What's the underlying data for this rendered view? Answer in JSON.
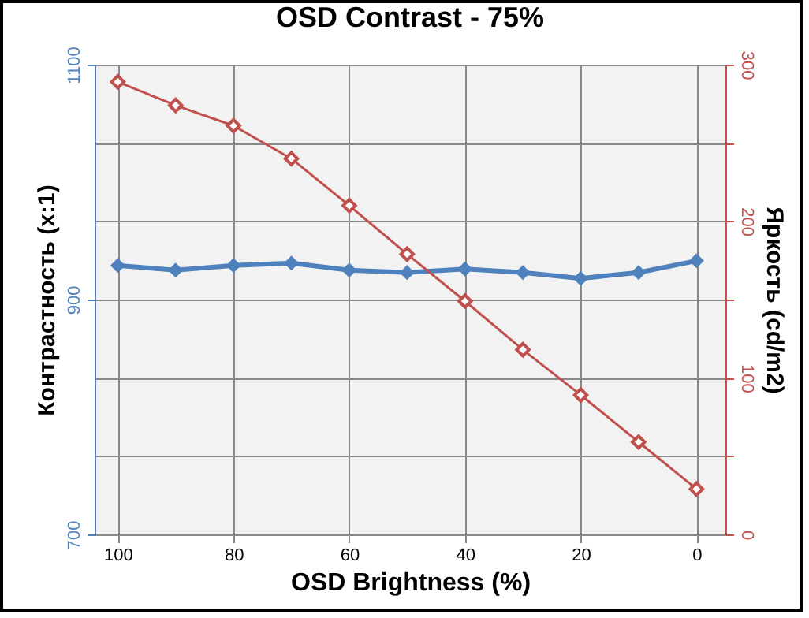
{
  "chart_data": {
    "type": "line",
    "title": "OSD Contrast - 75%",
    "xlabel": "OSD Brightness (%)",
    "ylabel": "Контрастность (x:1)",
    "y2label": "Яркость (cd/m2)",
    "x": [
      100,
      90,
      80,
      70,
      60,
      50,
      40,
      30,
      20,
      10,
      0
    ],
    "series": [
      {
        "color": "#4f81bd",
        "values": [
          929,
          925,
          929,
          931,
          925,
          923,
          926,
          923,
          918,
          923,
          933
        ]
      },
      {
        "color": "#c0504d",
        "axis": "y2",
        "values": [
          289,
          274,
          261,
          240,
          210,
          179,
          149,
          118,
          89,
          59,
          29
        ]
      }
    ],
    "xlim": [
      104,
      -5
    ],
    "xticks": [
      100,
      80,
      60,
      40,
      20,
      0
    ],
    "ylim": [
      700,
      1100
    ],
    "yticks": [
      700,
      900,
      1100
    ],
    "y2lim": [
      0,
      300
    ],
    "y2ticks": [
      0,
      {
        "value": 50,
        "label": null
      },
      100,
      {
        "value": 150,
        "label": null
      },
      200,
      {
        "value": 250,
        "label": null
      },
      300
    ],
    "grid": true,
    "marker": "diamond",
    "line_style": "solid"
  }
}
